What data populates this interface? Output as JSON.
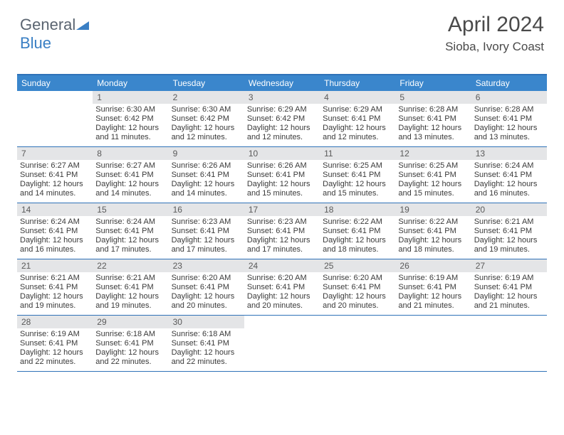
{
  "logo": {
    "text1": "General",
    "text2": "Blue"
  },
  "header": {
    "month": "April 2024",
    "location": "Sioba, Ivory Coast"
  },
  "colors": {
    "header_bg": "#3a86cc",
    "accent_border": "#2f72b8",
    "daynum_bg": "#e4e5e7",
    "text": "#3a3a3a",
    "logo_gray": "#5a6470",
    "logo_blue": "#3a7fc4"
  },
  "dayNames": [
    "Sunday",
    "Monday",
    "Tuesday",
    "Wednesday",
    "Thursday",
    "Friday",
    "Saturday"
  ],
  "weeks": [
    [
      null,
      {
        "n": "1",
        "sr": "6:30 AM",
        "ss": "6:42 PM",
        "dl": "12 hours and 11 minutes."
      },
      {
        "n": "2",
        "sr": "6:30 AM",
        "ss": "6:42 PM",
        "dl": "12 hours and 12 minutes."
      },
      {
        "n": "3",
        "sr": "6:29 AM",
        "ss": "6:42 PM",
        "dl": "12 hours and 12 minutes."
      },
      {
        "n": "4",
        "sr": "6:29 AM",
        "ss": "6:41 PM",
        "dl": "12 hours and 12 minutes."
      },
      {
        "n": "5",
        "sr": "6:28 AM",
        "ss": "6:41 PM",
        "dl": "12 hours and 13 minutes."
      },
      {
        "n": "6",
        "sr": "6:28 AM",
        "ss": "6:41 PM",
        "dl": "12 hours and 13 minutes."
      }
    ],
    [
      {
        "n": "7",
        "sr": "6:27 AM",
        "ss": "6:41 PM",
        "dl": "12 hours and 14 minutes."
      },
      {
        "n": "8",
        "sr": "6:27 AM",
        "ss": "6:41 PM",
        "dl": "12 hours and 14 minutes."
      },
      {
        "n": "9",
        "sr": "6:26 AM",
        "ss": "6:41 PM",
        "dl": "12 hours and 14 minutes."
      },
      {
        "n": "10",
        "sr": "6:26 AM",
        "ss": "6:41 PM",
        "dl": "12 hours and 15 minutes."
      },
      {
        "n": "11",
        "sr": "6:25 AM",
        "ss": "6:41 PM",
        "dl": "12 hours and 15 minutes."
      },
      {
        "n": "12",
        "sr": "6:25 AM",
        "ss": "6:41 PM",
        "dl": "12 hours and 15 minutes."
      },
      {
        "n": "13",
        "sr": "6:24 AM",
        "ss": "6:41 PM",
        "dl": "12 hours and 16 minutes."
      }
    ],
    [
      {
        "n": "14",
        "sr": "6:24 AM",
        "ss": "6:41 PM",
        "dl": "12 hours and 16 minutes."
      },
      {
        "n": "15",
        "sr": "6:24 AM",
        "ss": "6:41 PM",
        "dl": "12 hours and 17 minutes."
      },
      {
        "n": "16",
        "sr": "6:23 AM",
        "ss": "6:41 PM",
        "dl": "12 hours and 17 minutes."
      },
      {
        "n": "17",
        "sr": "6:23 AM",
        "ss": "6:41 PM",
        "dl": "12 hours and 17 minutes."
      },
      {
        "n": "18",
        "sr": "6:22 AM",
        "ss": "6:41 PM",
        "dl": "12 hours and 18 minutes."
      },
      {
        "n": "19",
        "sr": "6:22 AM",
        "ss": "6:41 PM",
        "dl": "12 hours and 18 minutes."
      },
      {
        "n": "20",
        "sr": "6:21 AM",
        "ss": "6:41 PM",
        "dl": "12 hours and 19 minutes."
      }
    ],
    [
      {
        "n": "21",
        "sr": "6:21 AM",
        "ss": "6:41 PM",
        "dl": "12 hours and 19 minutes."
      },
      {
        "n": "22",
        "sr": "6:21 AM",
        "ss": "6:41 PM",
        "dl": "12 hours and 19 minutes."
      },
      {
        "n": "23",
        "sr": "6:20 AM",
        "ss": "6:41 PM",
        "dl": "12 hours and 20 minutes."
      },
      {
        "n": "24",
        "sr": "6:20 AM",
        "ss": "6:41 PM",
        "dl": "12 hours and 20 minutes."
      },
      {
        "n": "25",
        "sr": "6:20 AM",
        "ss": "6:41 PM",
        "dl": "12 hours and 20 minutes."
      },
      {
        "n": "26",
        "sr": "6:19 AM",
        "ss": "6:41 PM",
        "dl": "12 hours and 21 minutes."
      },
      {
        "n": "27",
        "sr": "6:19 AM",
        "ss": "6:41 PM",
        "dl": "12 hours and 21 minutes."
      }
    ],
    [
      {
        "n": "28",
        "sr": "6:19 AM",
        "ss": "6:41 PM",
        "dl": "12 hours and 22 minutes."
      },
      {
        "n": "29",
        "sr": "6:18 AM",
        "ss": "6:41 PM",
        "dl": "12 hours and 22 minutes."
      },
      {
        "n": "30",
        "sr": "6:18 AM",
        "ss": "6:41 PM",
        "dl": "12 hours and 22 minutes."
      },
      null,
      null,
      null,
      null
    ]
  ],
  "labels": {
    "sunrise": "Sunrise:",
    "sunset": "Sunset:",
    "daylight": "Daylight:"
  }
}
